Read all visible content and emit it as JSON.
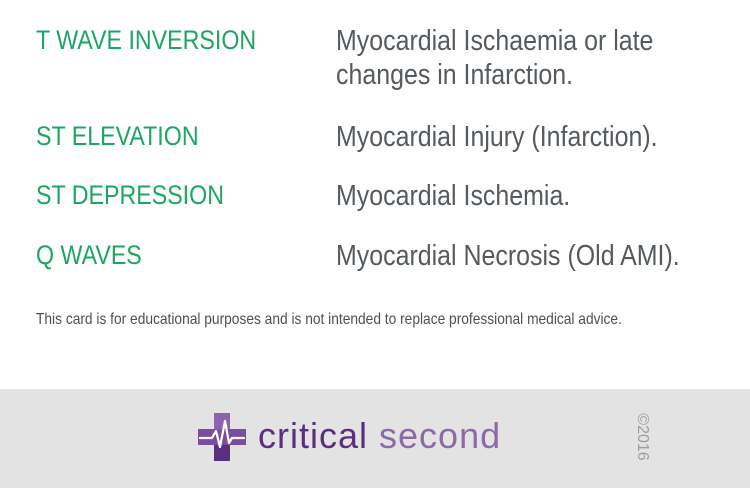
{
  "colors": {
    "term": "#1fa463",
    "meaning": "#555a5e",
    "footer_bg": "#e3e3e4",
    "brand_dark": "#5b2f7e",
    "brand_light": "#8c6aa6"
  },
  "rows": [
    {
      "term": "T WAVE INVERSION",
      "meaning_lines": [
        "Myocardial Ischaemia or late",
        "changes in Infarction."
      ]
    },
    {
      "term": "ST ELEVATION",
      "meaning_lines": [
        "Myocardial Injury (Infarction)."
      ]
    },
    {
      "term": "ST DEPRESSION",
      "meaning_lines": [
        "Myocardial Ischemia."
      ]
    },
    {
      "term": "Q WAVES",
      "meaning_lines": [
        "Myocardial Necrosis (Old AMI)."
      ]
    }
  ],
  "disclaimer": "This card is for educational purposes and is not intended to replace professional medical advice.",
  "footer": {
    "logo_icon": "medical-cross-ecg-icon",
    "brand_word1": "critical",
    "brand_word2": "second",
    "copyright": "©2016"
  }
}
